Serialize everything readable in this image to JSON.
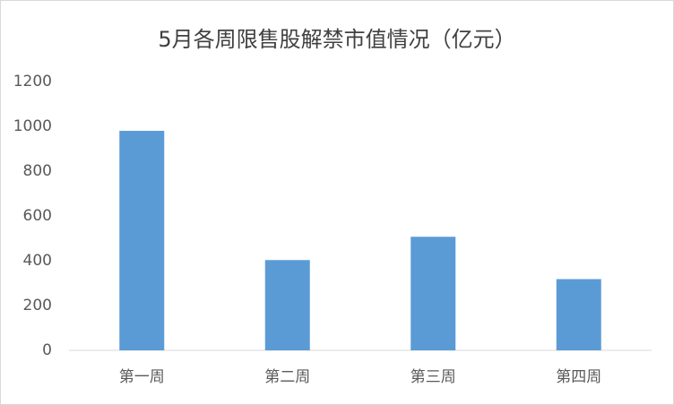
{
  "chart_data": {
    "type": "bar",
    "title": "5月各周限售股解禁市值情况（亿元）",
    "categories": [
      "第一周",
      "第二周",
      "第三周",
      "第四周"
    ],
    "values": [
      980,
      403,
      507,
      318
    ],
    "color": "#5b9bd5",
    "ylim": [
      0,
      1200
    ],
    "yticks": [
      0,
      200,
      400,
      600,
      800,
      1000,
      1200
    ],
    "grid": false
  }
}
